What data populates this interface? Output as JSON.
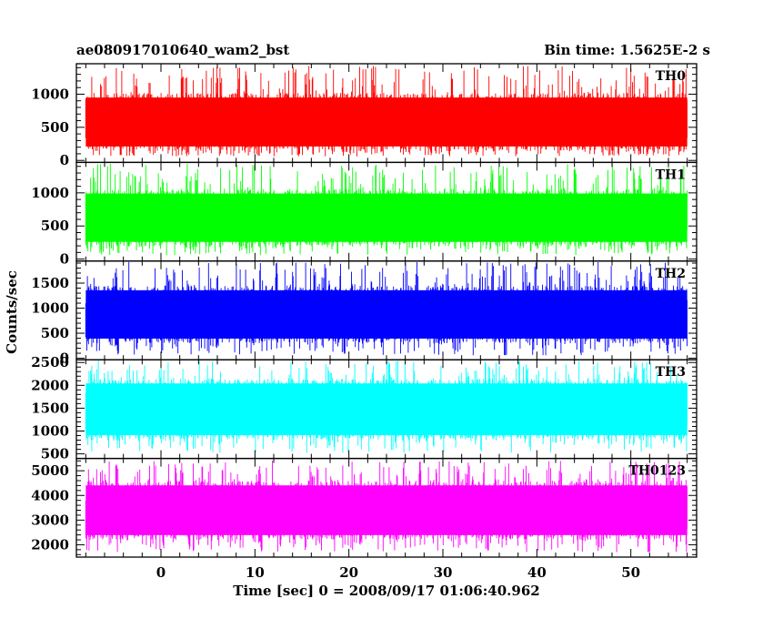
{
  "header": {
    "title": "ae080917010640_wam2_bst",
    "bin_time": "Bin time: 1.5625E-2 s"
  },
  "chart_data": {
    "type": "line",
    "xlabel": "Time [sec] 0 = 2008/09/17 01:06:40.962",
    "ylabel": "Counts/sec",
    "xlim": [
      -9,
      57
    ],
    "data_range": [
      -8,
      56
    ],
    "x_ticks": [
      0,
      10,
      20,
      30,
      40,
      50
    ],
    "grid": false,
    "panels": [
      {
        "name": "TH0",
        "color": "#ff0000",
        "ylim": [
          -30,
          1460
        ],
        "y_ticks": [
          0,
          500,
          1000
        ],
        "band": [
          140,
          1020
        ],
        "extremes": [
          60,
          1430
        ]
      },
      {
        "name": "TH1",
        "color": "#00ff00",
        "ylim": [
          -30,
          1460
        ],
        "y_ticks": [
          0,
          500,
          1000
        ],
        "band": [
          190,
          1060
        ],
        "extremes": [
          60,
          1440
        ]
      },
      {
        "name": "TH2",
        "color": "#0000ff",
        "ylim": [
          -30,
          1940
        ],
        "y_ticks": [
          0,
          500,
          1000,
          1500
        ],
        "band": [
          300,
          1450
        ],
        "extremes": [
          60,
          1920
        ]
      },
      {
        "name": "TH3",
        "color": "#00ffff",
        "ylim": [
          400,
          2560
        ],
        "y_ticks": [
          500,
          1000,
          1500,
          2000,
          2500
        ],
        "band": [
          800,
          2150
        ],
        "extremes": [
          520,
          2550
        ]
      },
      {
        "name": "TH0123",
        "color": "#ff00ff",
        "ylim": [
          1500,
          5500
        ],
        "y_ticks": [
          2000,
          3000,
          4000,
          5000
        ],
        "band": [
          2200,
          4600
        ],
        "extremes": [
          1700,
          5400
        ]
      }
    ]
  }
}
